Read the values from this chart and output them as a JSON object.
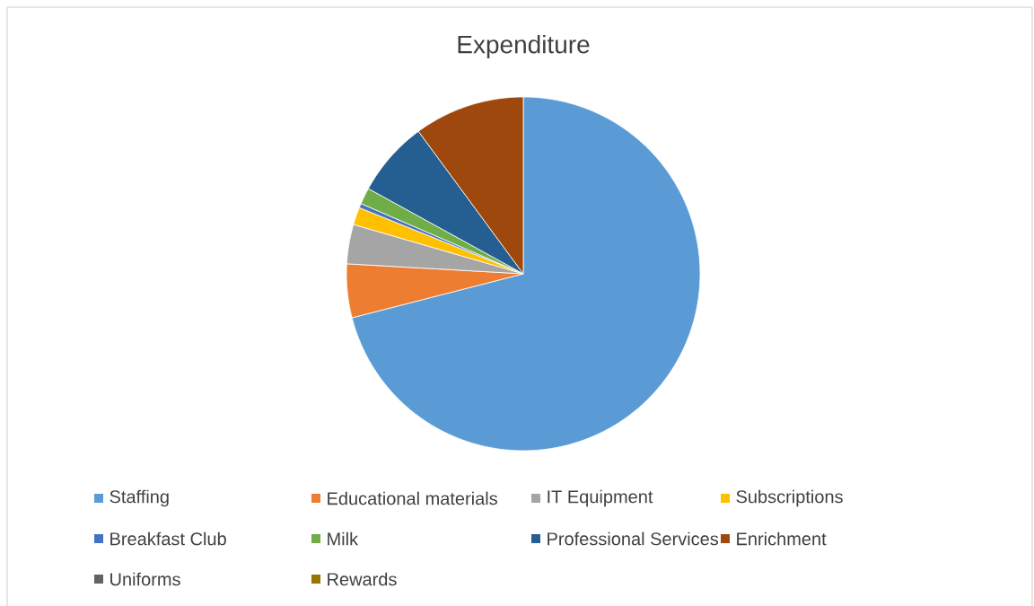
{
  "chart_data": {
    "type": "pie",
    "title": "Expenditure",
    "categories": [
      "Staffing",
      "Educational materials",
      "IT Equipment",
      "Subscriptions",
      "Breakfast Club",
      "Milk",
      "Professional Services",
      "Enrichment",
      "Uniforms",
      "Rewards"
    ],
    "values": [
      71.0,
      4.9,
      3.6,
      1.6,
      0.4,
      1.5,
      6.9,
      10.1,
      0,
      0
    ],
    "colors": [
      "#5b9bd5",
      "#ed7d31",
      "#a5a5a5",
      "#ffc000",
      "#4472c4",
      "#70ad47",
      "#255e91",
      "#9e480e",
      "#636363",
      "#997300"
    ],
    "legend": "bottom"
  }
}
